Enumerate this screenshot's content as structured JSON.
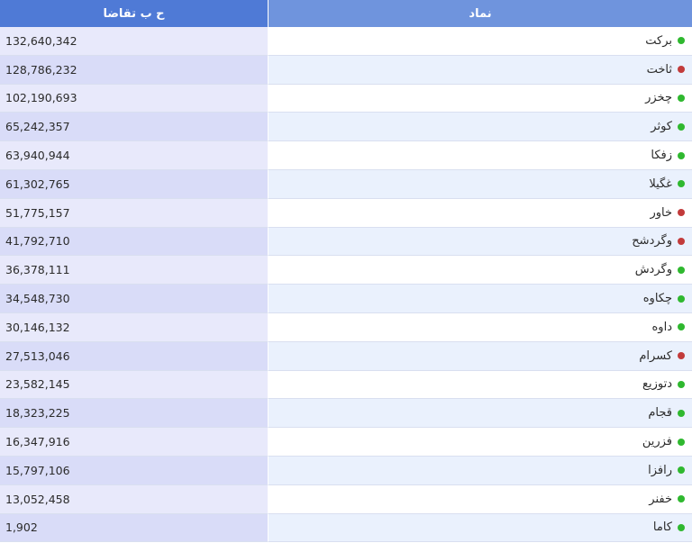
{
  "table": {
    "headers": {
      "symbol": "نماد",
      "value": "ح ب تقاضا"
    },
    "rows": [
      {
        "symbol": "برکت",
        "value": "132,640,342",
        "status": "up"
      },
      {
        "symbol": "ثاخت",
        "value": "128,786,232",
        "status": "down"
      },
      {
        "symbol": "چخزر",
        "value": "102,190,693",
        "status": "up"
      },
      {
        "symbol": "کوثر",
        "value": "65,242,357",
        "status": "up"
      },
      {
        "symbol": "زفکا",
        "value": "63,940,944",
        "status": "up"
      },
      {
        "symbol": "غگیلا",
        "value": "61,302,765",
        "status": "up"
      },
      {
        "symbol": "خاور",
        "value": "51,775,157",
        "status": "down"
      },
      {
        "symbol": "وگردشح",
        "value": "41,792,710",
        "status": "down"
      },
      {
        "symbol": "وگردش",
        "value": "36,378,111",
        "status": "up"
      },
      {
        "symbol": "چکاوه",
        "value": "34,548,730",
        "status": "up"
      },
      {
        "symbol": "داوه",
        "value": "30,146,132",
        "status": "up"
      },
      {
        "symbol": "کسرام",
        "value": "27,513,046",
        "status": "down"
      },
      {
        "symbol": "دتوزیع",
        "value": "23,582,145",
        "status": "up"
      },
      {
        "symbol": "قجام",
        "value": "18,323,225",
        "status": "up"
      },
      {
        "symbol": "فزرین",
        "value": "16,347,916",
        "status": "up"
      },
      {
        "symbol": "رافزا",
        "value": "15,797,106",
        "status": "up"
      },
      {
        "symbol": "خفنر",
        "value": "13,052,458",
        "status": "up"
      },
      {
        "symbol": "کاما",
        "value": "1,902",
        "status": "up"
      }
    ]
  },
  "colors": {
    "up": "#2fb82f",
    "down": "#c23b3b",
    "header_symbol": "#6f94dd",
    "header_value": "#4f7ad6"
  }
}
